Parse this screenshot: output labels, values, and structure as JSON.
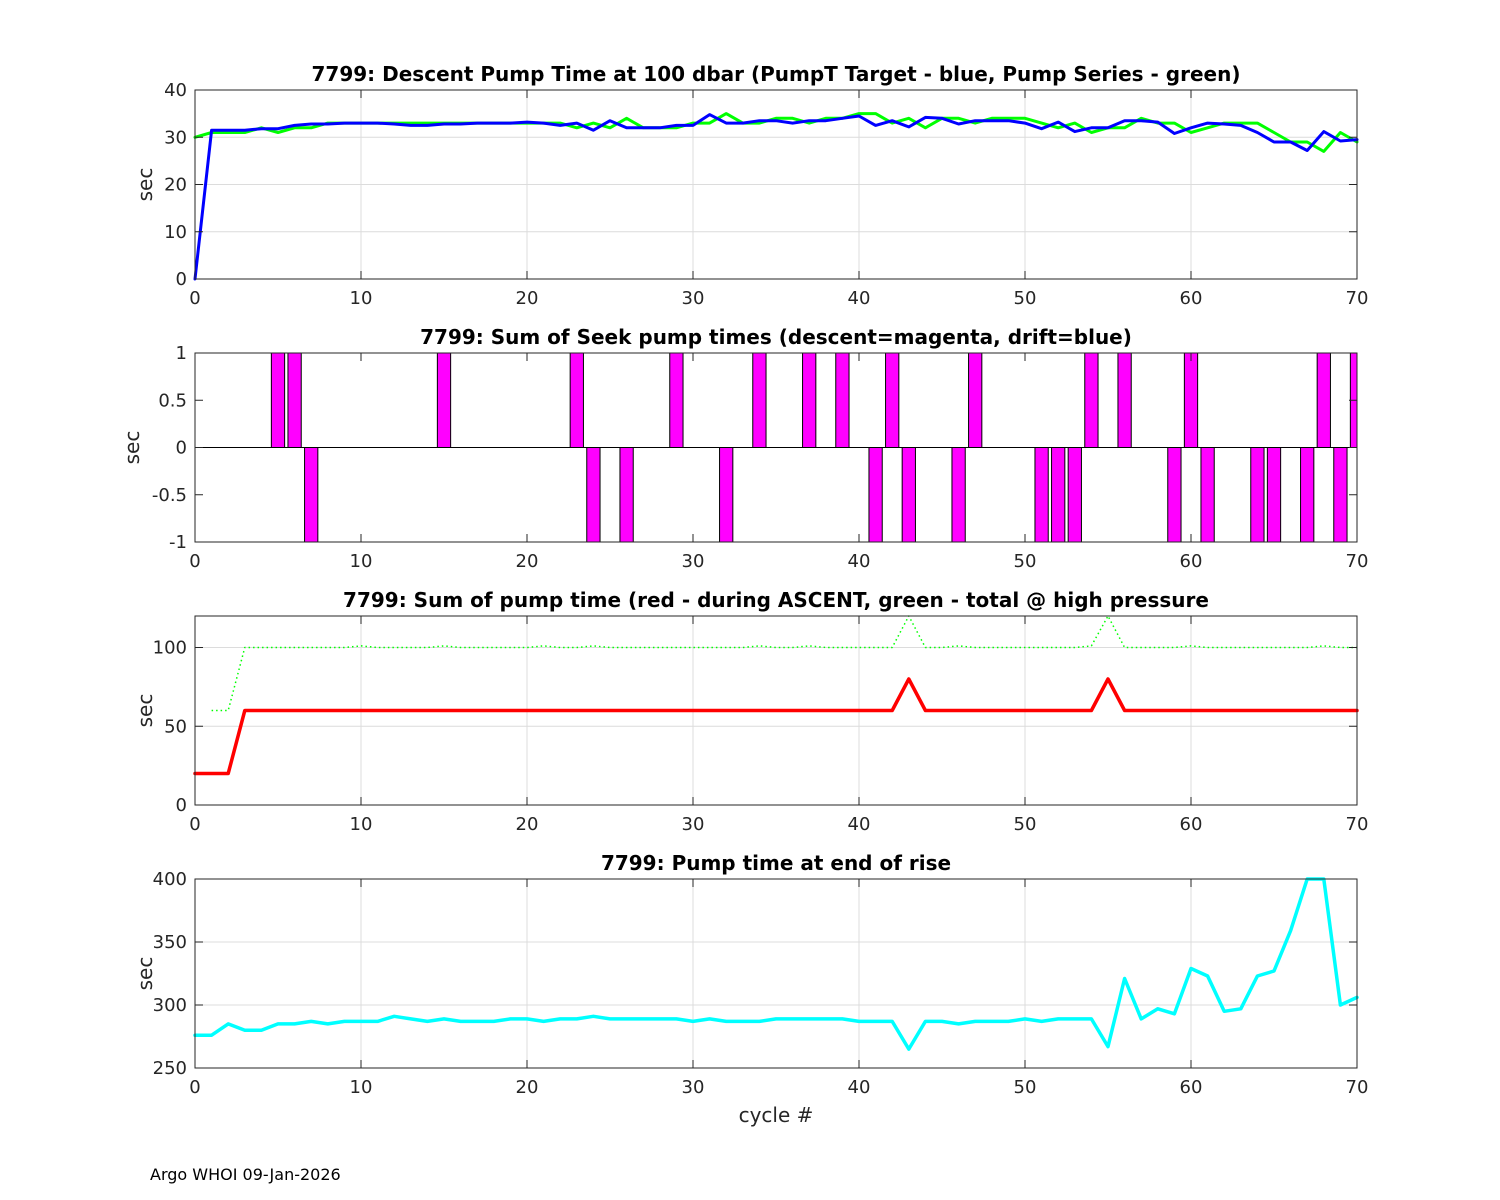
{
  "footer": "Argo WHOI 09-Jan-2026",
  "chart_data": [
    {
      "type": "line",
      "title": "7799: Descent Pump Time at 100 dbar (PumpT Target - blue, Pump Series - green)",
      "xlabel": "",
      "ylabel": "sec",
      "xlim": [
        0,
        70
      ],
      "ylim": [
        0,
        40
      ],
      "xticks": [
        0,
        10,
        20,
        30,
        40,
        50,
        60,
        70
      ],
      "yticks": [
        0,
        10,
        20,
        30,
        40
      ],
      "grid": true,
      "series": [
        {
          "name": "Pump Series - green",
          "color": "#00ff00",
          "width": 3,
          "style": "solid",
          "x": [
            0,
            1,
            2,
            3,
            4,
            5,
            6,
            7,
            8,
            9,
            10,
            11,
            12,
            13,
            14,
            15,
            16,
            17,
            18,
            19,
            20,
            21,
            22,
            23,
            24,
            25,
            26,
            27,
            28,
            29,
            30,
            31,
            32,
            33,
            34,
            35,
            36,
            37,
            38,
            39,
            40,
            41,
            42,
            43,
            44,
            45,
            46,
            47,
            48,
            49,
            50,
            51,
            52,
            53,
            54,
            55,
            56,
            57,
            58,
            59,
            60,
            61,
            62,
            63,
            64,
            65,
            66,
            67,
            68,
            69,
            70
          ],
          "values": [
            30,
            31,
            31,
            31,
            32,
            31,
            32,
            32,
            33,
            33,
            33,
            33,
            33,
            33,
            33,
            33,
            33,
            33,
            33,
            33,
            33,
            33,
            33,
            32,
            33,
            32,
            34,
            32,
            32,
            32,
            33,
            33,
            35,
            33,
            33,
            34,
            34,
            33,
            34,
            34,
            35,
            35,
            33,
            34,
            32,
            34,
            34,
            33,
            34,
            34,
            34,
            33,
            32,
            33,
            31,
            32,
            32,
            34,
            33,
            33,
            31,
            32,
            33,
            33,
            33,
            31,
            29,
            29,
            27,
            31,
            29
          ]
        },
        {
          "name": "PumpT Target - blue",
          "color": "#0000ff",
          "width": 3,
          "style": "solid",
          "x": [
            0,
            1,
            2,
            3,
            4,
            5,
            6,
            7,
            8,
            9,
            10,
            11,
            12,
            13,
            14,
            15,
            16,
            17,
            18,
            19,
            20,
            21,
            22,
            23,
            24,
            25,
            26,
            27,
            28,
            29,
            30,
            31,
            32,
            33,
            34,
            35,
            36,
            37,
            38,
            39,
            40,
            41,
            42,
            43,
            44,
            45,
            46,
            47,
            48,
            49,
            50,
            51,
            52,
            53,
            54,
            55,
            56,
            57,
            58,
            59,
            60,
            61,
            62,
            63,
            64,
            65,
            66,
            67,
            68,
            69,
            70
          ],
          "values": [
            0,
            31.5,
            31.5,
            31.5,
            31.8,
            31.8,
            32.5,
            32.8,
            32.8,
            33,
            33,
            33,
            32.8,
            32.5,
            32.5,
            32.8,
            32.8,
            33,
            33,
            33,
            33.2,
            33,
            32.5,
            33,
            31.5,
            33.5,
            32,
            32,
            32,
            32.5,
            32.5,
            34.8,
            33,
            33,
            33.5,
            33.5,
            33,
            33.5,
            33.5,
            34,
            34.5,
            32.5,
            33.5,
            32.2,
            34.2,
            34,
            32.8,
            33.5,
            33.5,
            33.5,
            33,
            31.8,
            33.2,
            31.2,
            32,
            32,
            33.5,
            33.5,
            33.2,
            30.8,
            32,
            33,
            32.8,
            32.5,
            31,
            29,
            29,
            27.2,
            31.2,
            29.2,
            29.5
          ]
        }
      ]
    },
    {
      "type": "bar",
      "title": "7799: Sum of Seek pump times (descent=magenta, drift=blue)",
      "xlabel": "",
      "ylabel": "sec",
      "xlim": [
        0,
        70
      ],
      "ylim": [
        -1,
        1
      ],
      "xticks": [
        0,
        10,
        20,
        30,
        40,
        50,
        60,
        70
      ],
      "yticks": [
        -1,
        -0.5,
        0,
        0.5,
        1
      ],
      "grid": false,
      "bar_color": "#ff00ff",
      "series": [
        {
          "name": "descent",
          "x": [
            5,
            6,
            7,
            15,
            23,
            24,
            26,
            29,
            32,
            34,
            37,
            39,
            41,
            42,
            43,
            46,
            47,
            51,
            52,
            53,
            54,
            56,
            59,
            60,
            61,
            64,
            65,
            67,
            68,
            69,
            70
          ],
          "values": [
            1,
            1,
            -1,
            1,
            1,
            -1,
            -1,
            1,
            -1,
            1,
            1,
            1,
            -1,
            1,
            -1,
            -1,
            1,
            -1,
            -1,
            -1,
            1,
            1,
            -1,
            1,
            -1,
            -1,
            -1,
            -1,
            1,
            -1,
            1
          ]
        }
      ]
    },
    {
      "type": "line",
      "title": "7799: Sum of pump time (red - during ASCENT, green - total @ high pressure",
      "xlabel": "",
      "ylabel": "sec",
      "xlim": [
        0,
        70
      ],
      "ylim": [
        0,
        120
      ],
      "xticks": [
        0,
        10,
        20,
        30,
        40,
        50,
        60,
        70
      ],
      "yticks": [
        0,
        50,
        100
      ],
      "grid": true,
      "series": [
        {
          "name": "total @ high pressure - green",
          "color": "#00ff00",
          "width": 1.5,
          "style": "dotted",
          "x": [
            1,
            2,
            3,
            4,
            5,
            6,
            7,
            8,
            9,
            10,
            11,
            12,
            13,
            14,
            15,
            16,
            17,
            18,
            19,
            20,
            21,
            22,
            23,
            24,
            25,
            26,
            27,
            28,
            29,
            30,
            31,
            32,
            33,
            34,
            35,
            36,
            37,
            38,
            39,
            40,
            41,
            42,
            43,
            44,
            45,
            46,
            47,
            48,
            49,
            50,
            51,
            52,
            53,
            54,
            55,
            56,
            57,
            58,
            59,
            60,
            61,
            62,
            63,
            64,
            65,
            66,
            67,
            68,
            69,
            70
          ],
          "values": [
            60,
            60,
            100,
            100,
            100,
            100,
            100,
            100,
            100,
            101,
            100,
            100,
            100,
            100,
            101,
            100,
            100,
            100,
            100,
            100,
            101,
            100,
            100,
            101,
            100,
            100,
            100,
            100,
            100,
            100,
            100,
            100,
            100,
            101,
            100,
            100,
            101,
            100,
            100,
            100,
            100,
            100,
            120,
            100,
            100,
            101,
            100,
            100,
            100,
            100,
            100,
            100,
            100,
            101,
            120,
            100,
            100,
            100,
            100,
            101,
            100,
            100,
            100,
            100,
            100,
            100,
            100,
            101,
            100,
            100
          ]
        },
        {
          "name": "during ASCENT - red",
          "color": "#ff0000",
          "width": 3.5,
          "style": "solid",
          "x": [
            0,
            1,
            2,
            3,
            4,
            5,
            6,
            7,
            8,
            9,
            10,
            11,
            12,
            13,
            14,
            15,
            16,
            17,
            18,
            19,
            20,
            21,
            22,
            23,
            24,
            25,
            26,
            27,
            28,
            29,
            30,
            31,
            32,
            33,
            34,
            35,
            36,
            37,
            38,
            39,
            40,
            41,
            42,
            43,
            44,
            45,
            46,
            47,
            48,
            49,
            50,
            51,
            52,
            53,
            54,
            55,
            56,
            57,
            58,
            59,
            60,
            61,
            62,
            63,
            64,
            65,
            66,
            67,
            68,
            69,
            70
          ],
          "values": [
            20,
            20,
            20,
            60,
            60,
            60,
            60,
            60,
            60,
            60,
            60,
            60,
            60,
            60,
            60,
            60,
            60,
            60,
            60,
            60,
            60,
            60,
            60,
            60,
            60,
            60,
            60,
            60,
            60,
            60,
            60,
            60,
            60,
            60,
            60,
            60,
            60,
            60,
            60,
            60,
            60,
            60,
            60,
            80,
            60,
            60,
            60,
            60,
            60,
            60,
            60,
            60,
            60,
            60,
            60,
            80,
            60,
            60,
            60,
            60,
            60,
            60,
            60,
            60,
            60,
            60,
            60,
            60,
            60,
            60,
            60
          ]
        }
      ]
    },
    {
      "type": "line",
      "title": "7799: Pump time at end of rise",
      "xlabel": "cycle #",
      "ylabel": "sec",
      "xlim": [
        0,
        70
      ],
      "ylim": [
        250,
        400
      ],
      "xticks": [
        0,
        10,
        20,
        30,
        40,
        50,
        60,
        70
      ],
      "yticks": [
        250,
        300,
        350,
        400
      ],
      "grid": true,
      "series": [
        {
          "name": "end of rise - cyan",
          "color": "#00ffff",
          "width": 3.5,
          "style": "solid",
          "x": [
            0,
            1,
            2,
            3,
            4,
            5,
            6,
            7,
            8,
            9,
            10,
            11,
            12,
            13,
            14,
            15,
            16,
            17,
            18,
            19,
            20,
            21,
            22,
            23,
            24,
            25,
            26,
            27,
            28,
            29,
            30,
            31,
            32,
            33,
            34,
            35,
            36,
            37,
            38,
            39,
            40,
            41,
            42,
            43,
            44,
            45,
            46,
            47,
            48,
            49,
            50,
            51,
            52,
            53,
            54,
            55,
            56,
            57,
            58,
            59,
            60,
            61,
            62,
            63,
            64,
            65,
            66,
            67,
            68,
            69,
            70
          ],
          "values": [
            276,
            276,
            285,
            280,
            280,
            285,
            285,
            287,
            285,
            287,
            287,
            287,
            291,
            289,
            287,
            289,
            287,
            287,
            287,
            289,
            289,
            287,
            289,
            289,
            291,
            289,
            289,
            289,
            289,
            289,
            287,
            289,
            287,
            287,
            287,
            289,
            289,
            289,
            289,
            289,
            287,
            287,
            287,
            265,
            287,
            287,
            285,
            287,
            287,
            287,
            289,
            287,
            289,
            289,
            289,
            267,
            321,
            289,
            297,
            293,
            329,
            323,
            295,
            297,
            323,
            327,
            359,
            400,
            400,
            300,
            306
          ]
        }
      ]
    }
  ]
}
